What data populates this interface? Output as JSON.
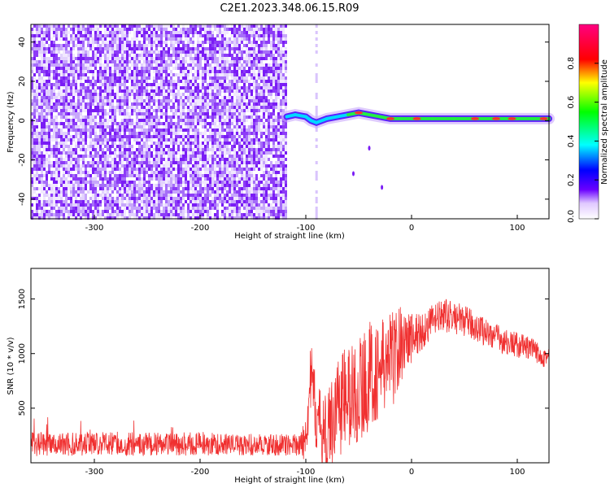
{
  "title": "C2E1.2023.348.06.15.R09",
  "chart_data": [
    {
      "type": "heatmap",
      "xlabel": "Height of straight line (km)",
      "ylabel": "Frequency (Hz)",
      "xlim": [
        -360,
        130
      ],
      "ylim": [
        -50,
        49
      ],
      "xticks": [
        -300,
        -200,
        -100,
        0,
        100
      ],
      "yticks": [
        -40,
        -20,
        0,
        20,
        40
      ],
      "noise_region_x": [
        -360,
        -118
      ],
      "signal_start_x": -118,
      "signal_track": {
        "x": [
          -118,
          -110,
          -100,
          -95,
          -90,
          -80,
          -70,
          -60,
          -50,
          -40,
          -30,
          -20,
          -10,
          0,
          20,
          40,
          60,
          80,
          100,
          130
        ],
        "freq": [
          2,
          3,
          2,
          0,
          -1,
          1,
          2,
          3,
          4,
          3,
          2,
          1,
          1,
          1,
          1,
          1,
          1,
          1,
          1,
          1
        ]
      },
      "colorbar": {
        "label": "Normalized spectral amplitude",
        "range": [
          0.0,
          1.0
        ],
        "ticks": [
          "0.0",
          "0.2",
          "0.4",
          "0.6",
          "0.8"
        ],
        "tick_values": [
          0.0,
          0.2,
          0.4,
          0.6,
          0.8
        ]
      }
    },
    {
      "type": "line",
      "xlabel": "Height of straight line (km)",
      "ylabel": "SNR (10 * v/v)",
      "xlim": [
        -360,
        130
      ],
      "ylim": [
        0,
        1780
      ],
      "xticks": [
        -300,
        -200,
        -100,
        0,
        100
      ],
      "yticks": [
        500,
        1000,
        1500
      ],
      "color": "#f03030",
      "series": [
        {
          "x": [
            -360,
            -340,
            -320,
            -300,
            -280,
            -260,
            -240,
            -220,
            -200,
            -180,
            -160,
            -140,
            -120,
            -105,
            -100,
            -95,
            -90,
            -85,
            -80,
            -70,
            -60,
            -50,
            -40,
            -30,
            -20,
            -15,
            -10,
            0,
            10,
            20,
            30,
            40,
            50,
            60,
            70,
            80,
            90,
            100,
            110,
            120,
            130
          ],
          "values": [
            170,
            175,
            170,
            180,
            175,
            170,
            175,
            170,
            175,
            170,
            165,
            165,
            165,
            165,
            300,
            800,
            400,
            300,
            250,
            550,
            600,
            650,
            800,
            850,
            950,
            1000,
            1100,
            1150,
            1200,
            1300,
            1350,
            1330,
            1300,
            1250,
            1200,
            1150,
            1100,
            1080,
            1050,
            1000,
            970
          ],
          "spread": [
            110,
            110,
            110,
            110,
            110,
            110,
            110,
            110,
            110,
            100,
            100,
            100,
            100,
            100,
            300,
            300,
            350,
            350,
            350,
            500,
            500,
            500,
            500,
            450,
            450,
            450,
            350,
            250,
            180,
            150,
            150,
            150,
            140,
            140,
            130,
            130,
            120,
            120,
            110,
            110,
            110
          ]
        }
      ]
    }
  ]
}
